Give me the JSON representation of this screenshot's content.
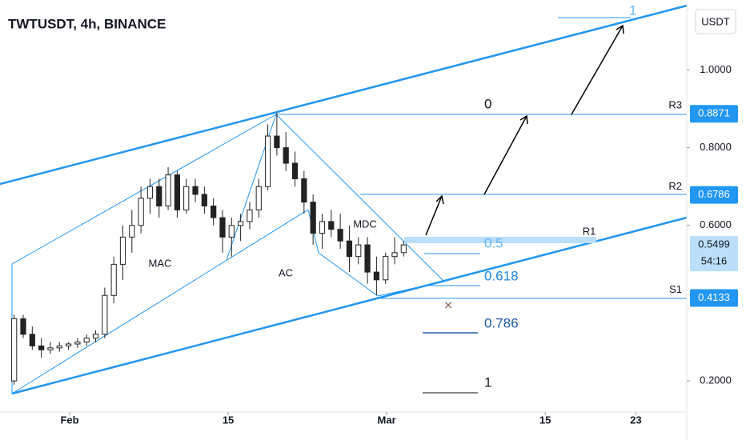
{
  "chart_data": {
    "type": "candlestick",
    "title": "TWTUSDT, 4h, BINANCE",
    "currency": "USDT",
    "color": "#222222",
    "x": [
      -4.9,
      -4.1,
      -3.3,
      -2.5,
      -1.7,
      -0.9,
      -0.1,
      0.7,
      1.5,
      2.3,
      3.1,
      3.9,
      4.7,
      5.5,
      6.3,
      7.1,
      7.9,
      8.7,
      9.5,
      10.3,
      11.1,
      11.9,
      12.7,
      13.5,
      14.3,
      15.1,
      15.9,
      16.7,
      17.5,
      18.3,
      19.1,
      19.9,
      20.7,
      21.5,
      22.3,
      23.1,
      23.9,
      24.7,
      25.5,
      26.3,
      27.1,
      27.9,
      28.7,
      29.5
    ],
    "open": [
      0.2,
      0.36,
      0.32,
      0.29,
      0.28,
      0.285,
      0.29,
      0.295,
      0.3,
      0.31,
      0.32,
      0.42,
      0.5,
      0.57,
      0.6,
      0.67,
      0.7,
      0.65,
      0.73,
      0.64,
      0.7,
      0.68,
      0.65,
      0.62,
      0.57,
      0.6,
      0.61,
      0.64,
      0.7,
      0.83,
      0.8,
      0.76,
      0.72,
      0.66,
      0.58,
      0.61,
      0.59,
      0.56,
      0.52,
      0.55,
      0.48,
      0.46,
      0.52,
      0.53
    ],
    "high": [
      0.37,
      0.37,
      0.34,
      0.31,
      0.3,
      0.3,
      0.3,
      0.31,
      0.32,
      0.33,
      0.44,
      0.52,
      0.6,
      0.64,
      0.7,
      0.72,
      0.72,
      0.75,
      0.74,
      0.72,
      0.72,
      0.7,
      0.67,
      0.64,
      0.62,
      0.63,
      0.66,
      0.72,
      0.86,
      0.89,
      0.84,
      0.79,
      0.74,
      0.68,
      0.63,
      0.64,
      0.63,
      0.6,
      0.57,
      0.57,
      0.52,
      0.53,
      0.57,
      0.56
    ],
    "low": [
      0.19,
      0.31,
      0.28,
      0.26,
      0.27,
      0.275,
      0.28,
      0.285,
      0.29,
      0.3,
      0.31,
      0.4,
      0.46,
      0.53,
      0.58,
      0.63,
      0.62,
      0.64,
      0.62,
      0.63,
      0.66,
      0.63,
      0.6,
      0.53,
      0.52,
      0.56,
      0.59,
      0.62,
      0.69,
      0.78,
      0.74,
      0.7,
      0.63,
      0.55,
      0.54,
      0.57,
      0.54,
      0.48,
      0.5,
      0.45,
      0.42,
      0.45,
      0.5,
      0.52
    ],
    "close": [
      0.36,
      0.32,
      0.29,
      0.28,
      0.285,
      0.29,
      0.295,
      0.3,
      0.31,
      0.32,
      0.42,
      0.5,
      0.57,
      0.6,
      0.67,
      0.7,
      0.65,
      0.73,
      0.64,
      0.7,
      0.68,
      0.65,
      0.62,
      0.57,
      0.6,
      0.61,
      0.64,
      0.7,
      0.83,
      0.8,
      0.76,
      0.72,
      0.66,
      0.58,
      0.61,
      0.59,
      0.56,
      0.52,
      0.55,
      0.48,
      0.46,
      0.52,
      0.53,
      0.5499
    ],
    "xlim": [
      -6.15,
      54.5
    ],
    "xticks": [
      {
        "value": 0,
        "label": "Feb"
      },
      {
        "value": 14,
        "label": "15"
      },
      {
        "value": 28,
        "label": "Mar"
      },
      {
        "value": 42,
        "label": "15"
      },
      {
        "value": 50,
        "label": "23"
      }
    ],
    "ylim": [
      0.12,
      1.18
    ],
    "yticks": [
      {
        "value": 1,
        "label": "1.0000"
      },
      {
        "value": 0.8,
        "label": "0.8000"
      },
      {
        "value": 0.6,
        "label": "0.6000"
      },
      {
        "value": 0.2,
        "label": "0.2000"
      }
    ],
    "levels": [
      {
        "name": "R3",
        "value": 0.8871
      },
      {
        "name": "R2",
        "value": 0.6786
      },
      {
        "name": "S1",
        "value": 0.4133
      }
    ],
    "last_price": 0.5499,
    "countdown": "54:16",
    "annotations": [
      "MAC",
      "AC",
      "MDC",
      "R1"
    ],
    "fib_labels": [
      "0",
      "0.5",
      "0.618",
      "0.786",
      "1"
    ],
    "target_label": "1"
  }
}
